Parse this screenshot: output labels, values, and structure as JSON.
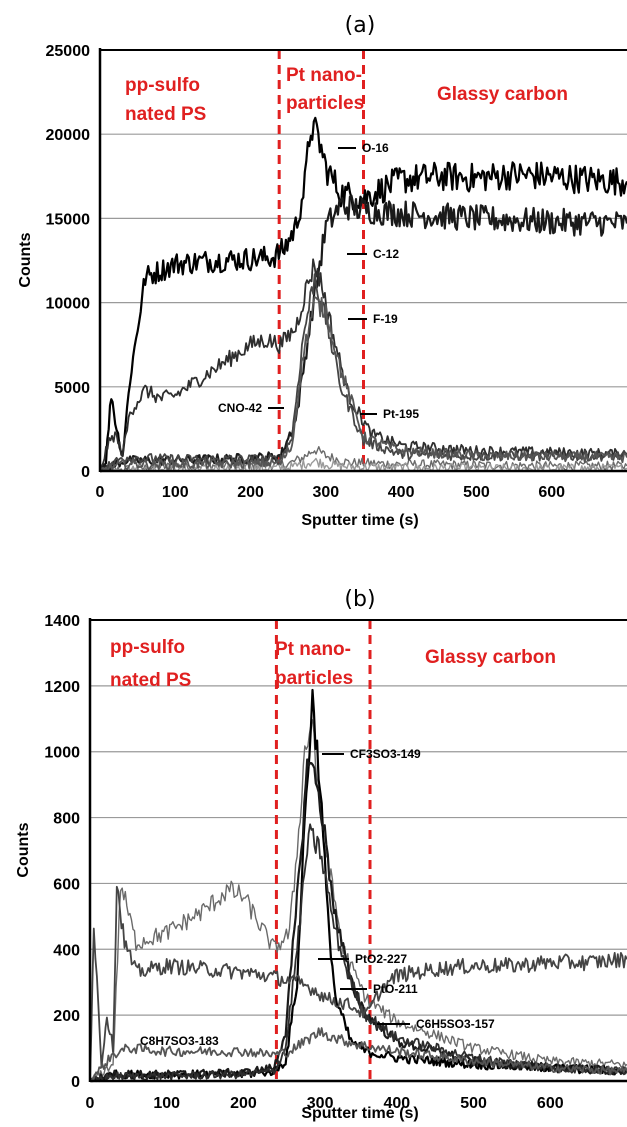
{
  "chart_data": [
    {
      "type": "line",
      "title": "(a)",
      "xlabel": "Sputter time (s)",
      "ylabel": "Counts",
      "xlim": [
        0,
        700
      ],
      "ylim": [
        0,
        25000
      ],
      "xticks": [
        "0",
        "100",
        "200",
        "300",
        "400",
        "500",
        "600"
      ],
      "yticks": [
        "0",
        "5000",
        "10000",
        "15000",
        "20000",
        "25000"
      ],
      "grid": "horizontal",
      "regions": [
        {
          "label_lines": [
            "pp-sulfo",
            "nated PS"
          ],
          "x_start": 0,
          "x_end": 238
        },
        {
          "label_lines": [
            "Pt nano-",
            "particles"
          ],
          "x_start": 238,
          "x_end": 350
        },
        {
          "label_lines": [
            "Glassy carbon"
          ],
          "x_start": 350,
          "x_end": 700
        }
      ],
      "dividers_x": [
        238,
        350
      ],
      "series": [
        {
          "name": "O-16",
          "x": [
            0,
            8,
            15,
            22,
            30,
            40,
            60,
            100,
            150,
            200,
            230,
            245,
            260,
            272,
            280,
            290,
            300,
            320,
            350,
            400,
            450,
            500,
            550,
            600,
            650,
            700
          ],
          "y": [
            0,
            700,
            4600,
            2500,
            900,
            5500,
            11500,
            12300,
            12500,
            12600,
            12700,
            13200,
            14500,
            17000,
            20500,
            19800,
            18000,
            16500,
            16200,
            17300,
            17500,
            17400,
            17600,
            17500,
            17300,
            17200
          ]
        },
        {
          "name": "C-12",
          "x": [
            0,
            30,
            100,
            200,
            240,
            260,
            280,
            300,
            320,
            350,
            400,
            500,
            600,
            700
          ],
          "y": [
            0,
            600,
            650,
            750,
            900,
            3000,
            9000,
            14500,
            15800,
            15500,
            15300,
            15000,
            14800,
            14700
          ]
        },
        {
          "name": "F-19",
          "x": [
            0,
            10,
            20,
            30,
            40,
            60,
            80,
            100,
            150,
            200,
            220,
            240,
            260,
            275,
            285,
            295,
            310,
            330,
            360,
            400,
            500,
            600,
            700
          ],
          "y": [
            0,
            1500,
            2200,
            1000,
            3500,
            4800,
            4300,
            4500,
            6000,
            7500,
            7800,
            7500,
            8500,
            11000,
            12300,
            11000,
            8000,
            4500,
            2200,
            1500,
            1200,
            1100,
            1000
          ]
        },
        {
          "name": "CNO-42",
          "x": [
            0,
            30,
            100,
            200,
            240,
            255,
            270,
            285,
            300,
            320,
            350,
            400,
            500,
            600,
            700
          ],
          "y": [
            0,
            800,
            700,
            700,
            700,
            2000,
            8000,
            11500,
            9000,
            5000,
            1800,
            1000,
            900,
            900,
            900
          ]
        },
        {
          "name": "Pt-195",
          "x": [
            0,
            30,
            100,
            200,
            240,
            255,
            270,
            285,
            300,
            320,
            350,
            400,
            500,
            600,
            700
          ],
          "y": [
            0,
            400,
            400,
            450,
            500,
            1500,
            7000,
            10000,
            9500,
            6000,
            2000,
            1200,
            900,
            850,
            800
          ]
        }
      ],
      "extra_series": [
        {
          "x": [
            0,
            100,
            200,
            250,
            270,
            285,
            300,
            330,
            400,
            500,
            600,
            700
          ],
          "y": [
            0,
            300,
            350,
            400,
            800,
            1300,
            900,
            500,
            400,
            350,
            300,
            300
          ]
        },
        {
          "x": [
            0,
            100,
            200,
            250,
            270,
            285,
            300,
            330,
            400,
            500,
            600,
            700
          ],
          "y": [
            0,
            150,
            150,
            200,
            400,
            600,
            400,
            250,
            200,
            150,
            150,
            150
          ]
        }
      ]
    },
    {
      "type": "line",
      "title": "(b)",
      "xlabel": "Sputter time (s)",
      "ylabel": "Counts",
      "xlim": [
        0,
        700
      ],
      "ylim": [
        0,
        1400
      ],
      "xticks": [
        "0",
        "100",
        "200",
        "300",
        "400",
        "500",
        "600"
      ],
      "yticks": [
        "0",
        "200",
        "400",
        "600",
        "800",
        "1000",
        "1200",
        "1400"
      ],
      "grid": "horizontal",
      "regions": [
        {
          "label_lines": [
            "pp-sulfo",
            "nated PS"
          ],
          "x_start": 0,
          "x_end": 243
        },
        {
          "label_lines": [
            "Pt nano-",
            "particles"
          ],
          "x_start": 243,
          "x_end": 365
        },
        {
          "label_lines": [
            "Glassy carbon"
          ],
          "x_start": 365,
          "x_end": 700
        }
      ],
      "dividers_x": [
        243,
        365
      ],
      "series": [
        {
          "name": "CF3SO3-149",
          "x": [
            0,
            30,
            100,
            200,
            240,
            255,
            270,
            280,
            290,
            300,
            310,
            320,
            340,
            360,
            400,
            500,
            600,
            700
          ],
          "y": [
            0,
            20,
            20,
            20,
            30,
            60,
            300,
            800,
            1160,
            900,
            500,
            250,
            120,
            90,
            70,
            50,
            40,
            30
          ]
        },
        {
          "name": "PtO2-227",
          "x": [
            0,
            30,
            100,
            200,
            240,
            255,
            270,
            285,
            300,
            320,
            340,
            360,
            400,
            500,
            600,
            700
          ],
          "y": [
            0,
            20,
            20,
            25,
            40,
            150,
            550,
            1000,
            850,
            500,
            300,
            200,
            120,
            60,
            40,
            30
          ]
        },
        {
          "name": "PtO-211",
          "x": [
            0,
            30,
            100,
            200,
            240,
            255,
            270,
            285,
            300,
            320,
            340,
            360,
            400,
            500,
            600,
            700
          ],
          "y": [
            0,
            15,
            15,
            20,
            30,
            100,
            400,
            750,
            700,
            450,
            300,
            200,
            130,
            70,
            40,
            30
          ]
        },
        {
          "name": "C6H5SO3-157",
          "x": [
            0,
            5,
            15,
            22,
            30,
            35,
            45,
            60,
            100,
            150,
            200,
            230,
            250,
            270,
            290,
            310,
            340,
            360,
            380,
            400,
            450,
            500,
            550,
            600,
            650,
            700
          ],
          "y": [
            0,
            480,
            50,
            200,
            100,
            600,
            420,
            330,
            350,
            340,
            330,
            320,
            310,
            300,
            280,
            250,
            230,
            200,
            280,
            320,
            340,
            350,
            350,
            360,
            360,
            370
          ]
        },
        {
          "name": "C8H7SO3-183",
          "x": [
            0,
            30,
            50,
            100,
            150,
            200,
            240,
            260,
            280,
            300,
            320,
            350,
            400,
            500,
            600,
            700
          ],
          "y": [
            0,
            80,
            100,
            90,
            90,
            90,
            80,
            90,
            120,
            150,
            130,
            110,
            90,
            60,
            40,
            30
          ]
        }
      ],
      "extra_series": [
        {
          "x": [
            0,
            30,
            40,
            60,
            100,
            150,
            180,
            200,
            220,
            240,
            260,
            270,
            280,
            290,
            300,
            330,
            360,
            400,
            500,
            600,
            700
          ],
          "y": [
            0,
            50,
            600,
            420,
            450,
            520,
            580,
            560,
            480,
            400,
            450,
            700,
            1000,
            1100,
            800,
            400,
            250,
            180,
            100,
            60,
            50
          ]
        }
      ]
    }
  ]
}
